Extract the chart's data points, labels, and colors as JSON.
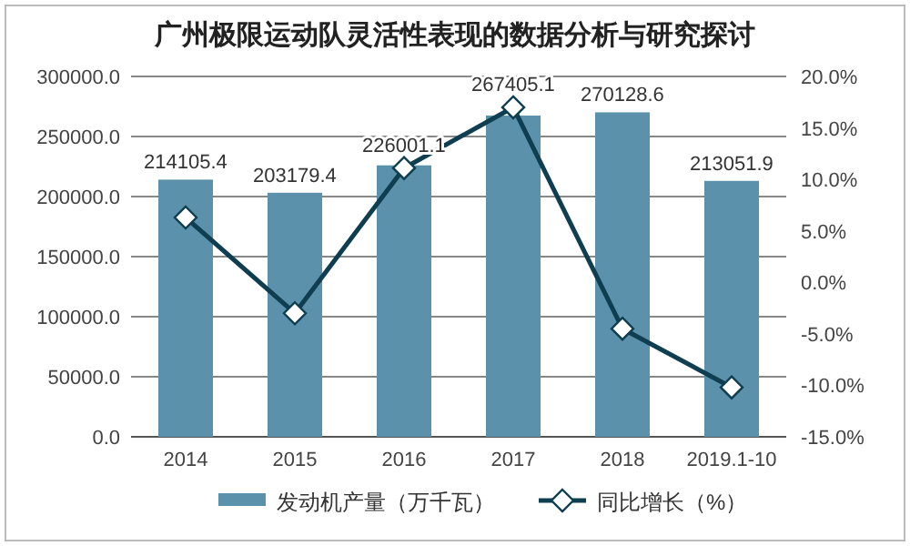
{
  "chart_data": {
    "type": "bar",
    "title": "广州极限运动队灵活性表现的数据分析与研究探讨",
    "categories": [
      "2014",
      "2015",
      "2016",
      "2017",
      "2018",
      "2019.1-10"
    ],
    "series": [
      {
        "name": "发动机产量（万千瓦）",
        "color": "#5b91aa",
        "values": [
          214105.4,
          203179.4,
          226001.1,
          267405.1,
          270128.6,
          213051.9
        ],
        "value_labels": [
          "214105.4",
          "203179.4",
          "226001.1",
          "267405.1",
          "270128.6",
          "213051.9"
        ]
      },
      {
        "name": "同比增长（%）",
        "type": "line",
        "axis": "y2",
        "color": "#0e3e50",
        "marker": "diamond",
        "values": [
          6.3,
          -3.0,
          11.1,
          17.0,
          -4.5,
          -10.2
        ]
      }
    ],
    "ylim": [
      0,
      300000
    ],
    "yticks": [
      {
        "value": 0,
        "label": "0.0"
      },
      {
        "value": 50000,
        "label": "50000.0"
      },
      {
        "value": 100000,
        "label": "100000.0"
      },
      {
        "value": 150000,
        "label": "150000.0"
      },
      {
        "value": 200000,
        "label": "200000.0"
      },
      {
        "value": 250000,
        "label": "250000.0"
      },
      {
        "value": 300000,
        "label": "300000.0"
      }
    ],
    "y2lim": [
      -15,
      20
    ],
    "y2ticks": [
      {
        "value": -15,
        "label": "-15.0%"
      },
      {
        "value": -10,
        "label": "-10.0%"
      },
      {
        "value": -5,
        "label": "-5.0%"
      },
      {
        "value": 0,
        "label": "0.0%"
      },
      {
        "value": 5,
        "label": "5.0%"
      },
      {
        "value": 10,
        "label": "10.0%"
      },
      {
        "value": 15,
        "label": "15.0%"
      },
      {
        "value": 20,
        "label": "20.0%"
      }
    ],
    "grid": "y",
    "legend": "bottom"
  }
}
